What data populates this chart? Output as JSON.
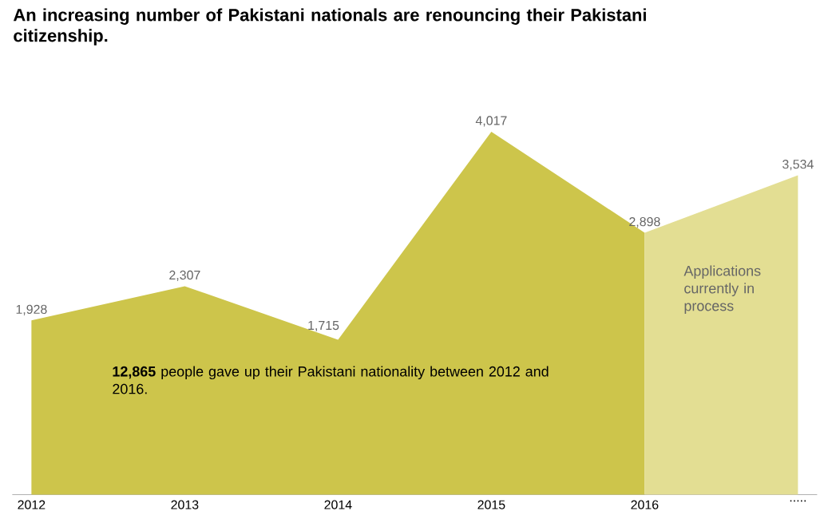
{
  "chart_data": {
    "type": "area",
    "title": "An increasing number of Pakistani nationals are renouncing their Pakistani citizenship.",
    "categories": [
      "2012",
      "2013",
      "2014",
      "2015",
      "2016",
      "....."
    ],
    "series": [
      {
        "color": "#cdc54b",
        "values": [
          1928,
          2307,
          1715,
          4017,
          2898,
          null
        ],
        "value_labels": [
          "1,928",
          "2,307",
          "1,715",
          "4,017",
          "2,898",
          null
        ]
      },
      {
        "color": "#e3de93",
        "values": [
          null,
          null,
          null,
          null,
          2898,
          3534
        ],
        "value_labels": [
          null,
          null,
          null,
          null,
          null,
          "3,534"
        ]
      }
    ],
    "annotations": [
      "**12,865** people gave up their Pakistani nationality between 2012 and 2016.",
      "Applications currently in process"
    ]
  }
}
